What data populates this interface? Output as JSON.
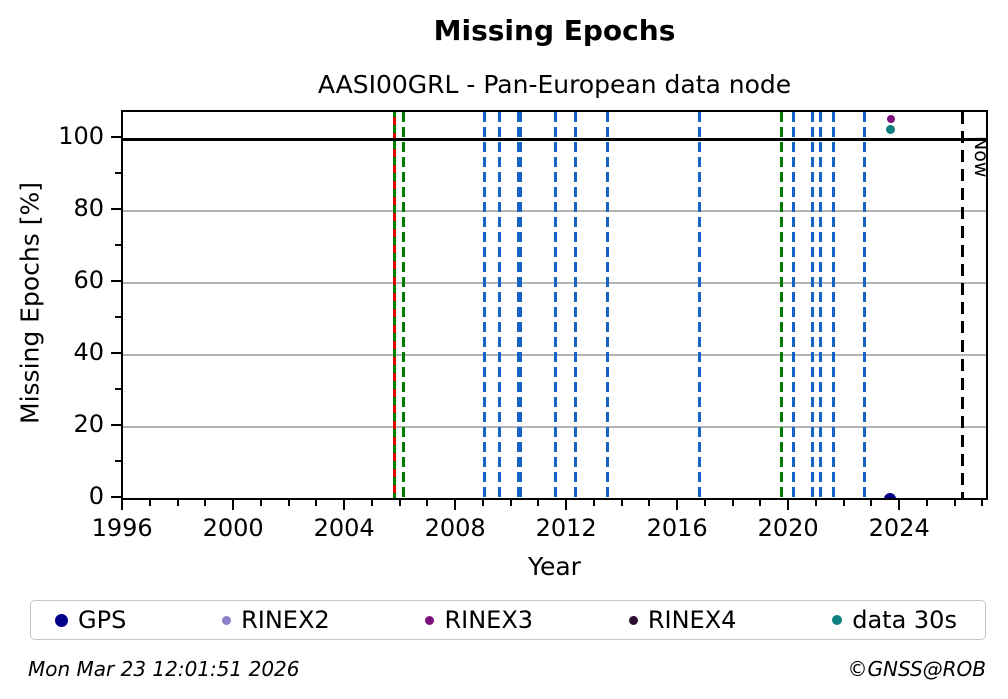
{
  "footer": {
    "timestamp": "Mon Mar 23 12:01:51 2026",
    "credit": "©GNSS@ROB"
  },
  "colors": {
    "green": "#007a00",
    "red": "#e00000",
    "blue": "#1863c6",
    "black": "#000000",
    "grid": "#b4b4b4",
    "spine": "#000000"
  },
  "chart_data": {
    "type": "scatter",
    "title": "Missing Epochs",
    "subtitle": "AASI00GRL - Pan-European data node",
    "xlabel": "Year",
    "ylabel": "Missing Epochs [%]",
    "xlim": [
      1995.96,
      2027.2
    ],
    "ylim": [
      -0.8,
      107.5
    ],
    "x_major_ticks": [
      1996,
      2000,
      2004,
      2008,
      2012,
      2016,
      2020,
      2024
    ],
    "x_minor_interval": 1,
    "y_major_ticks": [
      0,
      20,
      40,
      60,
      80,
      100
    ],
    "y_minor_interval": 10,
    "grid": "horizontal-only",
    "reference_hline_y": 100,
    "series": [
      {
        "name": "GPS",
        "color": "#00008b",
        "marker_size": 12,
        "points": [
          [
            2023.6,
            0
          ]
        ]
      },
      {
        "name": "RINEX2",
        "color": "#8b80c8",
        "marker_size": 8,
        "points": []
      },
      {
        "name": "RINEX3",
        "color": "#7d117d",
        "marker_size": 8,
        "points": [
          [
            2023.62,
            105.6
          ]
        ]
      },
      {
        "name": "RINEX4",
        "color": "#2e0d33",
        "marker_size": 8,
        "points": []
      },
      {
        "name": "data 30s",
        "color": "#0f7f7f",
        "marker_size": 9,
        "points": [
          [
            2023.62,
            102.6
          ]
        ]
      }
    ],
    "event_vlines": [
      {
        "year": 2005.73,
        "style": "solid",
        "color": "green",
        "width": 3
      },
      {
        "year": 2005.73,
        "style": "dashed",
        "color": "red",
        "width": 3,
        "overlay": true
      },
      {
        "year": 2006.08,
        "style": "dashed",
        "color": "green",
        "width": 3
      },
      {
        "year": 2009.0,
        "style": "dashed",
        "color": "blue",
        "width": 3
      },
      {
        "year": 2009.51,
        "style": "dashed",
        "color": "blue",
        "width": 3
      },
      {
        "year": 2010.25,
        "style": "dashed",
        "color": "blue",
        "width": 5
      },
      {
        "year": 2011.53,
        "style": "dashed",
        "color": "blue",
        "width": 3
      },
      {
        "year": 2012.25,
        "style": "dashed",
        "color": "blue",
        "width": 3
      },
      {
        "year": 2013.4,
        "style": "dashed",
        "color": "blue",
        "width": 3
      },
      {
        "year": 2016.75,
        "style": "dashed",
        "color": "blue",
        "width": 3
      },
      {
        "year": 2019.69,
        "style": "dashed",
        "color": "green",
        "width": 3
      },
      {
        "year": 2020.12,
        "style": "dashed",
        "color": "blue",
        "width": 3
      },
      {
        "year": 2020.79,
        "style": "dashed",
        "color": "blue",
        "width": 3
      },
      {
        "year": 2021.08,
        "style": "dashed",
        "color": "blue",
        "width": 3
      },
      {
        "year": 2021.56,
        "style": "dashed",
        "color": "blue",
        "width": 3
      },
      {
        "year": 2022.66,
        "style": "dashed",
        "color": "blue",
        "width": 3
      }
    ],
    "now_line": {
      "x": 2026.22,
      "label": "Now",
      "style": "dashed",
      "color": "black"
    },
    "legend_position": "bottom"
  }
}
